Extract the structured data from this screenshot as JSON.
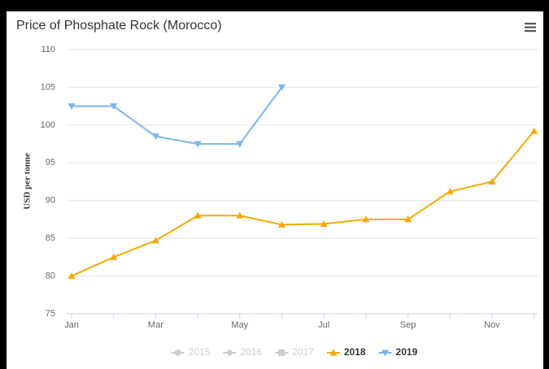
{
  "chart_data": {
    "type": "line",
    "title": "Price of Phosphate Rock (Morocco)",
    "y_label": "USD per tonne",
    "categories": [
      "Jan",
      null,
      "Mar",
      null,
      "May",
      null,
      "Jul",
      null,
      "Sep",
      null,
      "Nov",
      null
    ],
    "ylim": [
      75,
      110
    ],
    "yticks": [
      75,
      80,
      85,
      90,
      95,
      100,
      105,
      110
    ],
    "grid": true,
    "legend": "bottom",
    "series": [
      {
        "name": "2015",
        "color": "#cccccc",
        "marker": "circle",
        "visible": false,
        "values": [
          null,
          null,
          null,
          null,
          null,
          null,
          null,
          null,
          null,
          null,
          null,
          null
        ]
      },
      {
        "name": "2016",
        "color": "#cccccc",
        "marker": "diamond",
        "visible": false,
        "values": [
          null,
          null,
          null,
          null,
          null,
          null,
          null,
          null,
          null,
          null,
          null,
          null
        ]
      },
      {
        "name": "2017",
        "color": "#cccccc",
        "marker": "square",
        "visible": false,
        "values": [
          null,
          null,
          null,
          null,
          null,
          null,
          null,
          null,
          null,
          null,
          null,
          null
        ]
      },
      {
        "name": "2018",
        "color": "#f7a800",
        "marker": "triangle",
        "visible": true,
        "values": [
          80,
          82.5,
          84.7,
          88,
          88,
          86.8,
          86.9,
          87.5,
          87.5,
          91.2,
          92.5,
          99.2
        ]
      },
      {
        "name": "2019",
        "color": "#7cb5ec",
        "marker": "triangle-down",
        "visible": true,
        "values": [
          102.5,
          102.5,
          98.5,
          97.5,
          97.5,
          105,
          null,
          null,
          null,
          null,
          null,
          null
        ]
      }
    ]
  }
}
